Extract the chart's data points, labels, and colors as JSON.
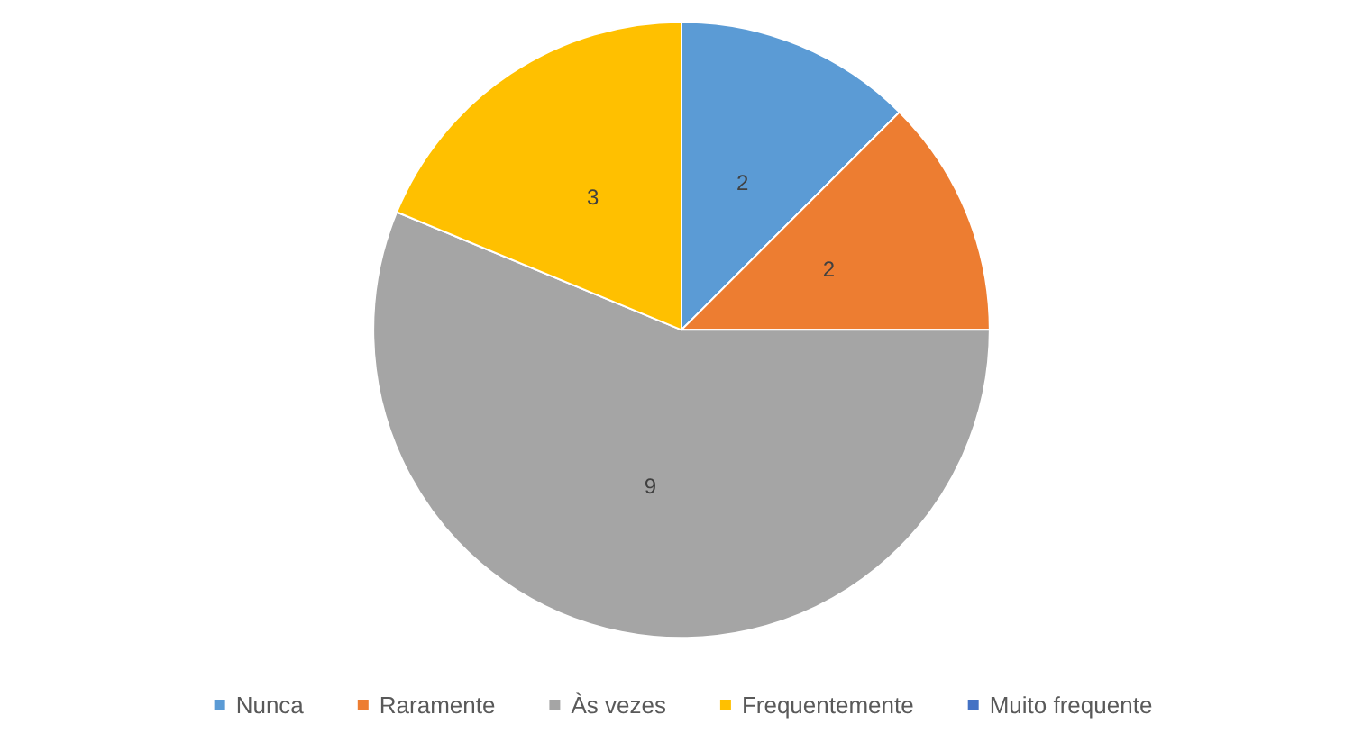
{
  "chart_data": {
    "type": "pie",
    "categories": [
      "Nunca",
      "Raramente",
      "Às vezes",
      "Frequentemente",
      "Muito frequente"
    ],
    "values": [
      2,
      2,
      9,
      3,
      0
    ],
    "colors": [
      "#5b9bd5",
      "#ed7d31",
      "#a5a5a5",
      "#ffc000",
      "#4472c4"
    ],
    "value_labels": [
      "2",
      "2",
      "9",
      "3",
      null
    ],
    "legend": "bottom"
  }
}
